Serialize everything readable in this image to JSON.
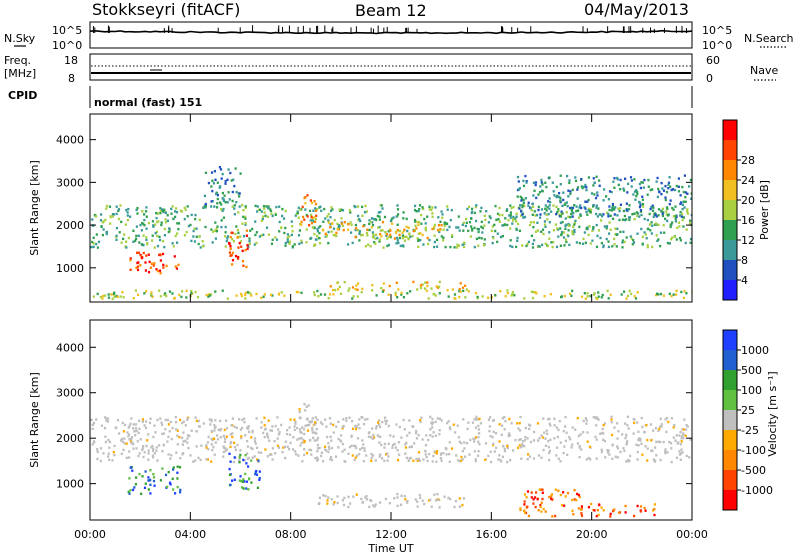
{
  "header": {
    "station": "Stokkseyri (fitACF)",
    "beam": "Beam 12",
    "date": "04/May/2013"
  },
  "strips": {
    "nsky": {
      "label": "N.Sky",
      "ticks": [
        "10^5",
        "10^0"
      ]
    },
    "nsearch": {
      "label": "N.Search",
      "ticks": [
        "10^5",
        "10^0"
      ]
    },
    "freq": {
      "label_top": "Freq.",
      "label_unit": "[MHz]",
      "ticks": [
        "18",
        "8"
      ]
    },
    "nave": {
      "label": "Nave",
      "ticks": [
        "60",
        "0"
      ]
    },
    "cpid": {
      "label": "CPID",
      "value": "normal (fast) 151"
    }
  },
  "colors": {
    "power_scale": [
      "#2020ff",
      "#2050c0",
      "#3a9a9a",
      "#2fa050",
      "#a8d040",
      "#f0c020",
      "#ff8800",
      "#ff4400",
      "#ff0000"
    ],
    "velocity_scale": [
      "#2040ff",
      "#2060d0",
      "#30a030",
      "#60c040",
      "#bfbfbf",
      "#ffaa00",
      "#ff8800",
      "#ff4400",
      "#ff0000"
    ],
    "ground_scatter": "#bfbfbf"
  },
  "chart_data": [
    {
      "type": "heatmap",
      "name": "power",
      "x_range": [
        "00:00",
        "24:00"
      ],
      "xticks": [
        "00:00",
        "04:00",
        "08:00",
        "12:00",
        "16:00",
        "20:00",
        "00:00"
      ],
      "ylabel": "Slant Range [km]",
      "ylim": [
        200,
        4600
      ],
      "yticks": [
        "1000",
        "2000",
        "3000",
        "4000"
      ],
      "colorbar": {
        "label": "Power [dB]",
        "range": [
          0,
          32
        ],
        "ticks": [
          "4",
          "8",
          "12",
          "16",
          "20",
          "24",
          "28"
        ]
      },
      "echo_bands": [
        {
          "t0": 0.0,
          "t1": 24.0,
          "r0": 1500,
          "r1": 2500,
          "level": 10
        },
        {
          "t0": 1.5,
          "t1": 3.6,
          "r0": 900,
          "r1": 1400,
          "level": 28
        },
        {
          "t0": 5.5,
          "t1": 6.3,
          "r0": 1000,
          "r1": 1900,
          "level": 26
        },
        {
          "t0": 8.3,
          "t1": 9.0,
          "r0": 2000,
          "r1": 2800,
          "level": 24
        },
        {
          "t0": 9.0,
          "t1": 14.0,
          "r0": 1700,
          "r1": 2100,
          "level": 20
        },
        {
          "t0": 4.5,
          "t1": 6.0,
          "r0": 2400,
          "r1": 3400,
          "level": 8
        },
        {
          "t0": 9.5,
          "t1": 15.0,
          "r0": 500,
          "r1": 700,
          "level": 18
        },
        {
          "t0": 17.0,
          "t1": 24.0,
          "r0": 2200,
          "r1": 3200,
          "level": 8
        },
        {
          "t0": 0.0,
          "t1": 24.0,
          "r0": 300,
          "r1": 500,
          "level": 14
        }
      ]
    },
    {
      "type": "heatmap",
      "name": "velocity",
      "x_range": [
        "00:00",
        "24:00"
      ],
      "xticks": [
        "00:00",
        "04:00",
        "08:00",
        "12:00",
        "16:00",
        "20:00",
        "00:00"
      ],
      "xlabel": "Time UT",
      "ylabel": "Slant Range [km]",
      "ylim": [
        200,
        4600
      ],
      "yticks": [
        "1000",
        "2000",
        "3000",
        "4000"
      ],
      "colorbar": {
        "label": "Velocity [m s⁻¹]",
        "ticks": [
          "1000",
          "500",
          "100",
          "25",
          "-25",
          "-100",
          "-500",
          "-1000"
        ]
      },
      "echo_bands": [
        {
          "t0": 0.0,
          "t1": 24.0,
          "r0": 1500,
          "r1": 2500,
          "level": 0
        },
        {
          "t0": 1.5,
          "t1": 3.6,
          "r0": 800,
          "r1": 1400,
          "level": 300
        },
        {
          "t0": 5.5,
          "t1": 6.8,
          "r0": 900,
          "r1": 1700,
          "level": 150
        },
        {
          "t0": 17.0,
          "t1": 19.5,
          "r0": 300,
          "r1": 900,
          "level": -300
        },
        {
          "t0": 19.5,
          "t1": 22.5,
          "r0": 300,
          "r1": 600,
          "level": -200
        },
        {
          "t0": 8.3,
          "t1": 9.0,
          "r0": 2000,
          "r1": 2800,
          "level": 0
        },
        {
          "t0": 9.0,
          "t1": 15.0,
          "r0": 500,
          "r1": 800,
          "level": 0
        }
      ]
    }
  ]
}
